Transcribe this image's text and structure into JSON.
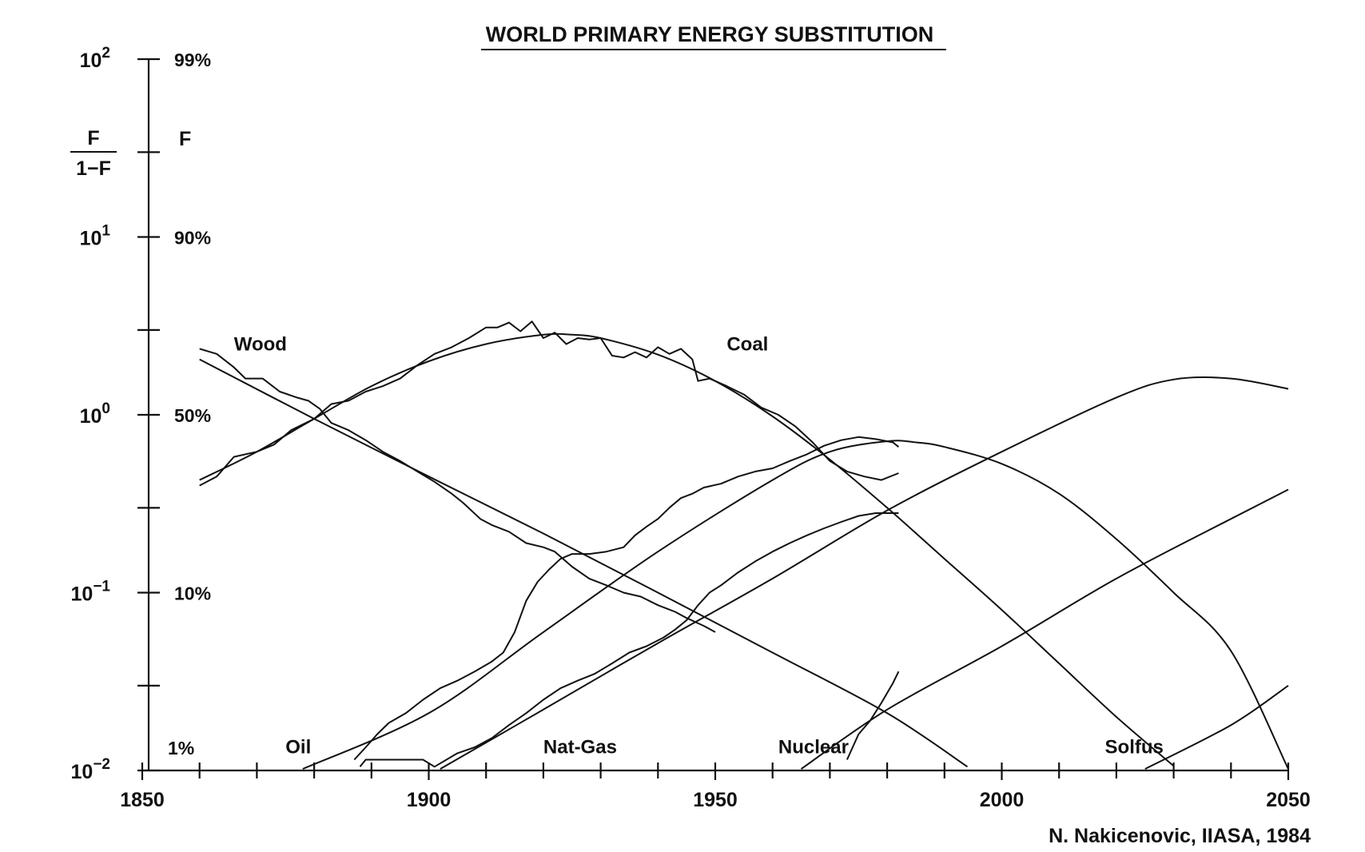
{
  "chart_data": {
    "type": "line",
    "title": "WORLD PRIMARY ENERGY SUBSTITUTION",
    "ylabel_numerator": "F",
    "ylabel_denominator": "1−F",
    "ylabel_secondary": "F",
    "y_scale": "log",
    "ylim": [
      0.01,
      100
    ],
    "y_ticks": [
      {
        "value": 0.01,
        "base": "10",
        "exp": "−2",
        "pct": "1%"
      },
      {
        "value": 0.1,
        "base": "10",
        "exp": "−1",
        "pct": "10%"
      },
      {
        "value": 1,
        "base": "10",
        "exp": "0",
        "pct": "50%"
      },
      {
        "value": 10,
        "base": "10",
        "exp": "1",
        "pct": "90%"
      },
      {
        "value": 100,
        "base": "10",
        "exp": "2",
        "pct": "99%"
      }
    ],
    "y_minor_ticks": [
      0.03,
      0.3,
      3,
      30
    ],
    "xlim": [
      1850,
      2050
    ],
    "x_ticks": [
      "1850",
      "1900",
      "1950",
      "2000",
      "2050"
    ],
    "x_minor_step": 10,
    "credit": "N. Nakicenovic, IIASA, 1984",
    "series": [
      {
        "name": "Wood",
        "fit": [
          [
            1860,
            2.05
          ],
          [
            1880,
            0.95
          ],
          [
            1900,
            0.45
          ],
          [
            1920,
            0.215
          ],
          [
            1940,
            0.1
          ],
          [
            1960,
            0.046
          ],
          [
            1980,
            0.021
          ],
          [
            1994,
            0.0105
          ]
        ],
        "observed": [
          [
            1860,
            2.35
          ],
          [
            1863,
            2.2
          ],
          [
            1866,
            1.85
          ],
          [
            1868,
            1.6
          ],
          [
            1871,
            1.6
          ],
          [
            1874,
            1.35
          ],
          [
            1877,
            1.25
          ],
          [
            1879,
            1.2
          ],
          [
            1881,
            1.08
          ],
          [
            1883,
            0.9
          ],
          [
            1886,
            0.82
          ],
          [
            1889,
            0.72
          ],
          [
            1892,
            0.62
          ],
          [
            1895,
            0.55
          ],
          [
            1898,
            0.48
          ],
          [
            1901,
            0.42
          ],
          [
            1904,
            0.36
          ],
          [
            1906,
            0.32
          ],
          [
            1909,
            0.26
          ],
          [
            1911,
            0.24
          ],
          [
            1914,
            0.22
          ],
          [
            1917,
            0.19
          ],
          [
            1920,
            0.18
          ],
          [
            1922,
            0.17
          ],
          [
            1925,
            0.14
          ],
          [
            1928,
            0.12
          ],
          [
            1931,
            0.11
          ],
          [
            1934,
            0.1
          ],
          [
            1937,
            0.095
          ],
          [
            1940,
            0.085
          ],
          [
            1943,
            0.078
          ],
          [
            1945,
            0.072
          ],
          [
            1948,
            0.065
          ],
          [
            1950,
            0.06
          ]
        ]
      },
      {
        "name": "Coal",
        "fit": [
          [
            1860,
            0.43
          ],
          [
            1870,
            0.62
          ],
          [
            1880,
            0.95
          ],
          [
            1890,
            1.45
          ],
          [
            1900,
            2.0
          ],
          [
            1910,
            2.5
          ],
          [
            1920,
            2.82
          ],
          [
            1925,
            2.82
          ],
          [
            1930,
            2.7
          ],
          [
            1940,
            2.18
          ],
          [
            1950,
            1.55
          ],
          [
            1960,
            0.98
          ],
          [
            1970,
            0.56
          ],
          [
            1980,
            0.3
          ],
          [
            1990,
            0.155
          ],
          [
            2000,
            0.08
          ],
          [
            2010,
            0.04
          ],
          [
            2020,
            0.02
          ],
          [
            2030,
            0.0106
          ]
        ],
        "observed": [
          [
            1860,
            0.4
          ],
          [
            1863,
            0.45
          ],
          [
            1866,
            0.58
          ],
          [
            1870,
            0.62
          ],
          [
            1873,
            0.68
          ],
          [
            1876,
            0.82
          ],
          [
            1880,
            0.95
          ],
          [
            1883,
            1.15
          ],
          [
            1886,
            1.2
          ],
          [
            1889,
            1.35
          ],
          [
            1892,
            1.45
          ],
          [
            1895,
            1.6
          ],
          [
            1898,
            1.9
          ],
          [
            1901,
            2.2
          ],
          [
            1904,
            2.4
          ],
          [
            1907,
            2.7
          ],
          [
            1910,
            3.1
          ],
          [
            1912,
            3.1
          ],
          [
            1914,
            3.3
          ],
          [
            1916,
            2.95
          ],
          [
            1918,
            3.35
          ],
          [
            1920,
            2.7
          ],
          [
            1922,
            2.9
          ],
          [
            1924,
            2.5
          ],
          [
            1926,
            2.7
          ],
          [
            1928,
            2.65
          ],
          [
            1930,
            2.7
          ],
          [
            1932,
            2.15
          ],
          [
            1934,
            2.1
          ],
          [
            1936,
            2.25
          ],
          [
            1938,
            2.1
          ],
          [
            1940,
            2.4
          ],
          [
            1942,
            2.2
          ],
          [
            1944,
            2.35
          ],
          [
            1946,
            2.05
          ],
          [
            1947,
            1.55
          ],
          [
            1949,
            1.6
          ],
          [
            1952,
            1.45
          ],
          [
            1955,
            1.3
          ],
          [
            1958,
            1.1
          ],
          [
            1961,
            1.0
          ],
          [
            1964,
            0.86
          ],
          [
            1967,
            0.7
          ],
          [
            1970,
            0.55
          ],
          [
            1973,
            0.48
          ],
          [
            1976,
            0.45
          ],
          [
            1979,
            0.43
          ],
          [
            1982,
            0.47
          ]
        ]
      },
      {
        "name": "Oil",
        "fit": [
          [
            1878,
            0.0102
          ],
          [
            1900,
            0.021
          ],
          [
            1920,
            0.06
          ],
          [
            1940,
            0.17
          ],
          [
            1960,
            0.43
          ],
          [
            1970,
            0.62
          ],
          [
            1980,
            0.71
          ],
          [
            1985,
            0.7
          ],
          [
            1990,
            0.66
          ],
          [
            2000,
            0.53
          ],
          [
            2010,
            0.36
          ],
          [
            2020,
            0.2
          ],
          [
            2030,
            0.1
          ],
          [
            2040,
            0.047
          ],
          [
            2050,
            0.0102
          ]
        ],
        "observed": [
          [
            1887,
            0.0115
          ],
          [
            1889,
            0.0135
          ],
          [
            1891,
            0.016
          ],
          [
            1893,
            0.0185
          ],
          [
            1896,
            0.021
          ],
          [
            1899,
            0.025
          ],
          [
            1902,
            0.029
          ],
          [
            1905,
            0.032
          ],
          [
            1908,
            0.036
          ],
          [
            1911,
            0.041
          ],
          [
            1913,
            0.046
          ],
          [
            1915,
            0.06
          ],
          [
            1917,
            0.09
          ],
          [
            1919,
            0.115
          ],
          [
            1921,
            0.135
          ],
          [
            1923,
            0.155
          ],
          [
            1925,
            0.165
          ],
          [
            1928,
            0.165
          ],
          [
            1931,
            0.17
          ],
          [
            1934,
            0.18
          ],
          [
            1936,
            0.21
          ],
          [
            1938,
            0.235
          ],
          [
            1940,
            0.26
          ],
          [
            1942,
            0.3
          ],
          [
            1944,
            0.34
          ],
          [
            1946,
            0.36
          ],
          [
            1948,
            0.39
          ],
          [
            1951,
            0.41
          ],
          [
            1954,
            0.45
          ],
          [
            1957,
            0.48
          ],
          [
            1960,
            0.5
          ],
          [
            1963,
            0.55
          ],
          [
            1966,
            0.6
          ],
          [
            1969,
            0.67
          ],
          [
            1972,
            0.72
          ],
          [
            1975,
            0.75
          ],
          [
            1978,
            0.73
          ],
          [
            1981,
            0.7
          ],
          [
            1982,
            0.66
          ]
        ]
      },
      {
        "name": "Nat-Gas",
        "fit": [
          [
            1902,
            0.0102
          ],
          [
            1920,
            0.022
          ],
          [
            1940,
            0.052
          ],
          [
            1960,
            0.12
          ],
          [
            1980,
            0.29
          ],
          [
            2000,
            0.62
          ],
          [
            2020,
            1.25
          ],
          [
            2030,
            1.58
          ],
          [
            2040,
            1.6
          ],
          [
            2050,
            1.4
          ]
        ],
        "observed": [
          [
            1888,
            0.0105
          ],
          [
            1889,
            0.0115
          ],
          [
            1895,
            0.0115
          ],
          [
            1899,
            0.0115
          ],
          [
            1901,
            0.0105
          ],
          [
            1905,
            0.0125
          ],
          [
            1908,
            0.0135
          ],
          [
            1911,
            0.0152
          ],
          [
            1914,
            0.018
          ],
          [
            1917,
            0.021
          ],
          [
            1920,
            0.025
          ],
          [
            1923,
            0.029
          ],
          [
            1926,
            0.032
          ],
          [
            1929,
            0.035
          ],
          [
            1932,
            0.04
          ],
          [
            1935,
            0.046
          ],
          [
            1938,
            0.05
          ],
          [
            1941,
            0.056
          ],
          [
            1943,
            0.062
          ],
          [
            1945,
            0.07
          ],
          [
            1947,
            0.085
          ],
          [
            1949,
            0.1
          ],
          [
            1951,
            0.11
          ],
          [
            1954,
            0.13
          ],
          [
            1957,
            0.15
          ],
          [
            1960,
            0.17
          ],
          [
            1963,
            0.19
          ],
          [
            1966,
            0.21
          ],
          [
            1969,
            0.23
          ],
          [
            1972,
            0.25
          ],
          [
            1975,
            0.27
          ],
          [
            1978,
            0.28
          ],
          [
            1982,
            0.28
          ]
        ]
      },
      {
        "name": "Nuclear",
        "fit": [
          [
            1965,
            0.0102
          ],
          [
            1980,
            0.022
          ],
          [
            2000,
            0.05
          ],
          [
            2020,
            0.12
          ],
          [
            2040,
            0.26
          ],
          [
            2050,
            0.38
          ]
        ],
        "observed": [
          [
            1973,
            0.0115
          ],
          [
            1975,
            0.016
          ],
          [
            1977,
            0.019
          ],
          [
            1979,
            0.024
          ],
          [
            1981,
            0.031
          ],
          [
            1982,
            0.036
          ]
        ]
      },
      {
        "name": "Solfus",
        "fit": [
          [
            2025,
            0.0102
          ],
          [
            2040,
            0.018
          ],
          [
            2050,
            0.03
          ]
        ],
        "observed": []
      }
    ],
    "label_positions_data": [
      {
        "name": "Wood",
        "x": 1866,
        "y": 2.3
      },
      {
        "name": "Coal",
        "x": 1952,
        "y": 2.3
      },
      {
        "name": "Oil",
        "x": 1875,
        "y": 0.0125
      },
      {
        "name": "Nat-Gas",
        "x": 1920,
        "y": 0.0125
      },
      {
        "name": "Nuclear",
        "x": 1961,
        "y": 0.0125
      },
      {
        "name": "Solfus",
        "x": 2018,
        "y": 0.0125
      }
    ],
    "pct_label_1": "1%"
  }
}
